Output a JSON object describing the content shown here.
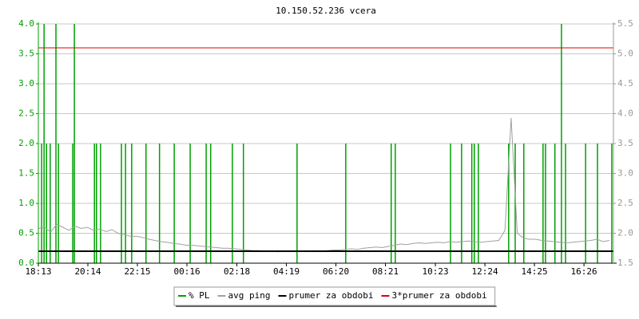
{
  "chart_data": {
    "type": "line",
    "title": "10.150.52.236 vcera",
    "xlim": [
      0,
      1405
    ],
    "xticks": [
      {
        "value": 0,
        "label": "18:13"
      },
      {
        "value": 121,
        "label": "20:14"
      },
      {
        "value": 242,
        "label": "22:15"
      },
      {
        "value": 363,
        "label": "00:16"
      },
      {
        "value": 485,
        "label": "02:18"
      },
      {
        "value": 606,
        "label": "04:19"
      },
      {
        "value": 727,
        "label": "06:20"
      },
      {
        "value": 848,
        "label": "08:21"
      },
      {
        "value": 970,
        "label": "10:23"
      },
      {
        "value": 1091,
        "label": "12:24"
      },
      {
        "value": 1212,
        "label": "14:25"
      },
      {
        "value": 1333,
        "label": "16:26"
      }
    ],
    "ylim": [
      0,
      4
    ],
    "yticks": [
      {
        "value": 0,
        "label": "0.0"
      },
      0.5,
      {
        "value": 1,
        "label": "1.0"
      },
      1.5,
      {
        "value": 2,
        "label": "2.0"
      },
      2.5,
      {
        "value": 3,
        "label": "3.0"
      },
      3.5,
      {
        "value": 4,
        "label": "4.0"
      }
    ],
    "y2lim": [
      1.5,
      5.5
    ],
    "y2ticks": [
      1.5,
      {
        "value": 2,
        "label": "2.0"
      },
      2.5,
      {
        "value": 3,
        "label": "3.0"
      },
      3.5,
      {
        "value": 4,
        "label": "4.0"
      },
      4.5,
      {
        "value": 5,
        "label": "5.0"
      },
      5.5
    ],
    "grid": true,
    "series": [
      {
        "name": "% PL",
        "color": "#00a000",
        "kind": "spikes",
        "axis": "y",
        "x": [
          8,
          14,
          20,
          29,
          43,
          49,
          84,
          88,
          137,
          142,
          152,
          203,
          213,
          228,
          263,
          296,
          332,
          371,
          410,
          421,
          474,
          501,
          632,
          751,
          862,
          872,
          1007,
          1034,
          1059,
          1065,
          1075,
          1149,
          1165,
          1186,
          1233,
          1239,
          1262,
          1278,
          1288,
          1337,
          1366,
          1401
        ],
        "values": [
          2,
          4,
          2,
          2,
          4,
          2,
          2,
          4,
          2,
          2,
          2,
          2,
          2,
          2,
          2,
          2,
          2,
          2,
          2,
          2,
          2,
          2,
          2,
          2,
          2,
          2,
          2,
          2,
          2,
          2,
          2,
          2,
          2,
          2,
          2,
          2,
          2,
          4,
          2,
          2,
          2,
          2
        ]
      },
      {
        "name": "avg ping",
        "color": "#a0a0a0",
        "kind": "line",
        "axis": "y2",
        "x": [
          0,
          15,
          30,
          45,
          60,
          75,
          90,
          105,
          120,
          135,
          150,
          165,
          180,
          195,
          210,
          225,
          240,
          255,
          270,
          285,
          300,
          315,
          330,
          345,
          360,
          375,
          390,
          405,
          420,
          435,
          450,
          465,
          480,
          495,
          510,
          525,
          540,
          555,
          570,
          585,
          600,
          615,
          630,
          645,
          660,
          675,
          690,
          705,
          720,
          735,
          750,
          765,
          780,
          795,
          810,
          825,
          840,
          855,
          870,
          885,
          900,
          915,
          930,
          945,
          960,
          975,
          990,
          1005,
          1020,
          1035,
          1050,
          1065,
          1080,
          1095,
          1110,
          1125,
          1140,
          1155,
          1170,
          1185,
          1200,
          1215,
          1230,
          1245,
          1260,
          1275,
          1290,
          1305,
          1320,
          1335,
          1350,
          1365,
          1380,
          1395
        ],
        "values": [
          2.08,
          2.1,
          2.02,
          2.15,
          2.1,
          2.05,
          2.12,
          2.08,
          2.1,
          2.05,
          2.07,
          2.03,
          2.06,
          2.0,
          1.98,
          1.95,
          1.95,
          1.93,
          1.9,
          1.88,
          1.86,
          1.85,
          1.83,
          1.82,
          1.8,
          1.8,
          1.79,
          1.78,
          1.77,
          1.76,
          1.75,
          1.75,
          1.74,
          1.73,
          1.72,
          1.71,
          1.71,
          1.7,
          1.7,
          1.69,
          1.7,
          1.7,
          1.69,
          1.7,
          1.7,
          1.71,
          1.7,
          1.71,
          1.72,
          1.72,
          1.73,
          1.74,
          1.73,
          1.75,
          1.76,
          1.77,
          1.76,
          1.78,
          1.8,
          1.82,
          1.81,
          1.83,
          1.84,
          1.83,
          1.84,
          1.85,
          1.84,
          1.86,
          1.85,
          1.86,
          1.87,
          1.86,
          1.85,
          1.86,
          1.87,
          1.88,
          2.05,
          3.93,
          2.0,
          1.92,
          1.9,
          1.9,
          1.88,
          1.87,
          1.86,
          1.85,
          1.84,
          1.85,
          1.86,
          1.87,
          1.88,
          1.9,
          1.86,
          1.88
        ]
      },
      {
        "name": "prumer za obdobi",
        "color": "#000000",
        "kind": "hline",
        "axis": "y2",
        "value": 1.7
      },
      {
        "name": "3*prumer za obdobi",
        "color": "#e00000",
        "kind": "hline",
        "axis": "y2",
        "value": 5.1
      }
    ]
  }
}
